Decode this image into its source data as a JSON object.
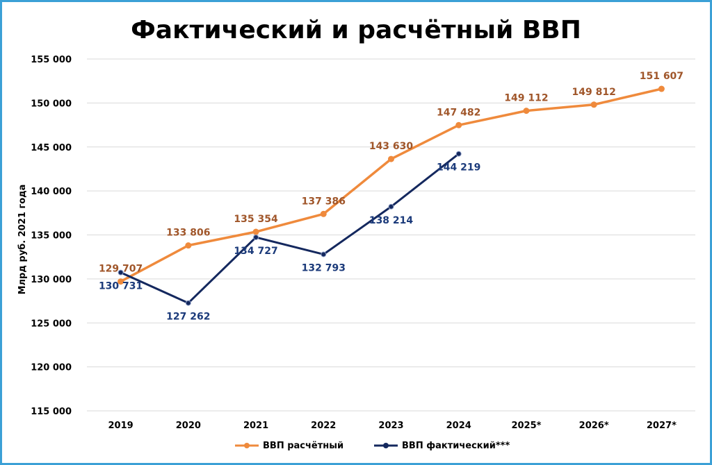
{
  "chart_data": {
    "type": "line",
    "title": "Фактический и расчётный ВВП",
    "ylabel": "Млрд руб. 2021 года",
    "xlabel": "",
    "categories": [
      "2019",
      "2020",
      "2021",
      "2022",
      "2023",
      "2024",
      "2025*",
      "2026*",
      "2027*"
    ],
    "ylim": [
      115000,
      155000
    ],
    "yticks": [
      115000,
      120000,
      125000,
      130000,
      135000,
      140000,
      145000,
      150000,
      155000
    ],
    "ytick_labels": [
      "115 000",
      "120 000",
      "125 000",
      "130 000",
      "135 000",
      "140 000",
      "145 000",
      "150 000",
      "155 000"
    ],
    "grid": "horizontal",
    "legend_position": "bottom",
    "series": [
      {
        "name": "ВВП расчётный",
        "color": "#ef8a3c",
        "label_color": "#a0562a",
        "values": [
          129707,
          133806,
          135354,
          137386,
          143630,
          147482,
          149112,
          149812,
          151607
        ],
        "labels": [
          "129 707",
          "133 806",
          "135 354",
          "137 386",
          "143 630",
          "147 482",
          "149 112",
          "149 812",
          "151 607"
        ]
      },
      {
        "name": "ВВП фактический***",
        "color": "#14285e",
        "label_color": "#1b3a7a",
        "values": [
          130731,
          127262,
          134727,
          132793,
          138214,
          144219,
          null,
          null,
          null
        ],
        "labels": [
          "130 731",
          "127 262",
          "134 727",
          "132 793",
          "138 214",
          "144 219",
          null,
          null,
          null
        ]
      }
    ]
  }
}
